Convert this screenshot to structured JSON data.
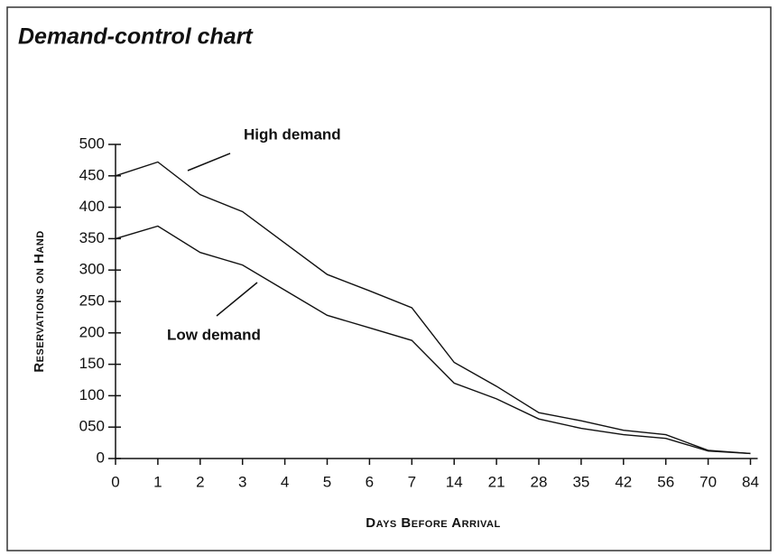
{
  "chart_data": {
    "type": "line",
    "title": "Demand-control chart",
    "x_label": "Days Before Arrival",
    "y_label": "Reservations on Hand",
    "categories": [
      "0",
      "1",
      "2",
      "3",
      "4",
      "5",
      "6",
      "7",
      "14",
      "21",
      "28",
      "35",
      "42",
      "56",
      "70",
      "84"
    ],
    "series": [
      {
        "name": "High demand",
        "color": "#111111",
        "values": [
          450,
          472,
          420,
          393,
          343,
          293,
          267,
          240,
          153,
          115,
          73,
          60,
          45,
          38,
          13,
          8
        ]
      },
      {
        "name": "Low demand",
        "color": "#111111",
        "values": [
          350,
          370,
          328,
          308,
          268,
          228,
          208,
          188,
          120,
          95,
          63,
          48,
          38,
          32,
          12,
          8
        ]
      }
    ],
    "ylim": [
      0,
      500
    ],
    "yticks": [
      0,
      {
        "value": 50,
        "label": "050"
      },
      100,
      150,
      200,
      250,
      300,
      350,
      400,
      450,
      500
    ],
    "grid": false
  }
}
